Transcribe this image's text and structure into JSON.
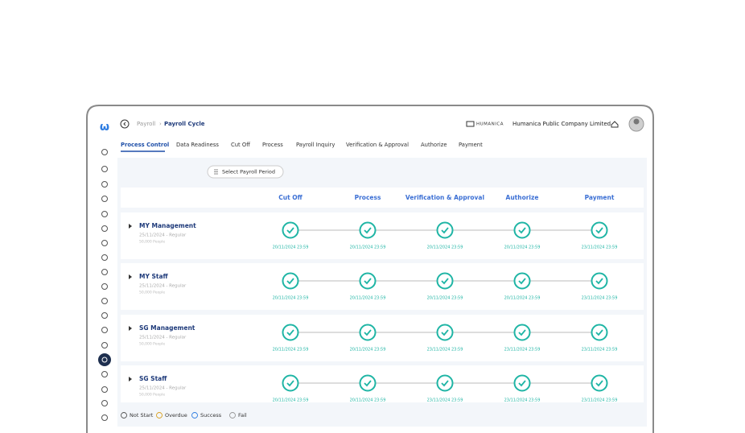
{
  "header": {
    "breadcrumb": [
      "Payroll",
      "Payroll Cycle"
    ],
    "brand": "HUMANICA",
    "company": "Humanica Public Company Limited"
  },
  "tabs": [
    "Process Control",
    "Data Readiness",
    "Cut Off",
    "Process",
    "Payroll Inquiry",
    "Verification & Approval",
    "Authorize",
    "Payment"
  ],
  "select_button": "Select Payroll Period",
  "columns": [
    "Cut Off",
    "Process",
    "Verification & Approval",
    "Authorize",
    "Payment"
  ],
  "rows": [
    {
      "name": "MY Management",
      "type": "25/11/2024 - Regular",
      "people": "50,000 People",
      "dates": [
        "20/11/2024 23:59",
        "20/11/2024 23:59",
        "20/11/2024 23:59",
        "20/11/2024 23:59",
        "23/11/2024 23:59"
      ]
    },
    {
      "name": "MY Staff",
      "type": "25/11/2024 - Regular",
      "people": "50,000 People",
      "dates": [
        "20/11/2024 23:59",
        "20/11/2024 23:59",
        "20/11/2024 23:59",
        "20/11/2024 23:59",
        "23/11/2024 23:59"
      ]
    },
    {
      "name": "SG Management",
      "type": "25/11/2024 - Regular",
      "people": "50,000 People",
      "dates": [
        "20/11/2024 23:59",
        "20/11/2024 23:59",
        "23/11/2024 23:59",
        "23/11/2024 23:59",
        "23/11/2024 23:59"
      ]
    },
    {
      "name": "SG Staff",
      "type": "25/11/2024 - Regular",
      "people": "50,000 People",
      "dates": [
        "20/11/2024 23:59",
        "20/11/2024 23:59",
        "23/11/2024 23:59",
        "23/11/2024 23:59",
        "23/11/2024 23:59"
      ]
    }
  ],
  "legend": [
    "Not Start",
    "Overdue",
    "Success",
    "Fail"
  ]
}
